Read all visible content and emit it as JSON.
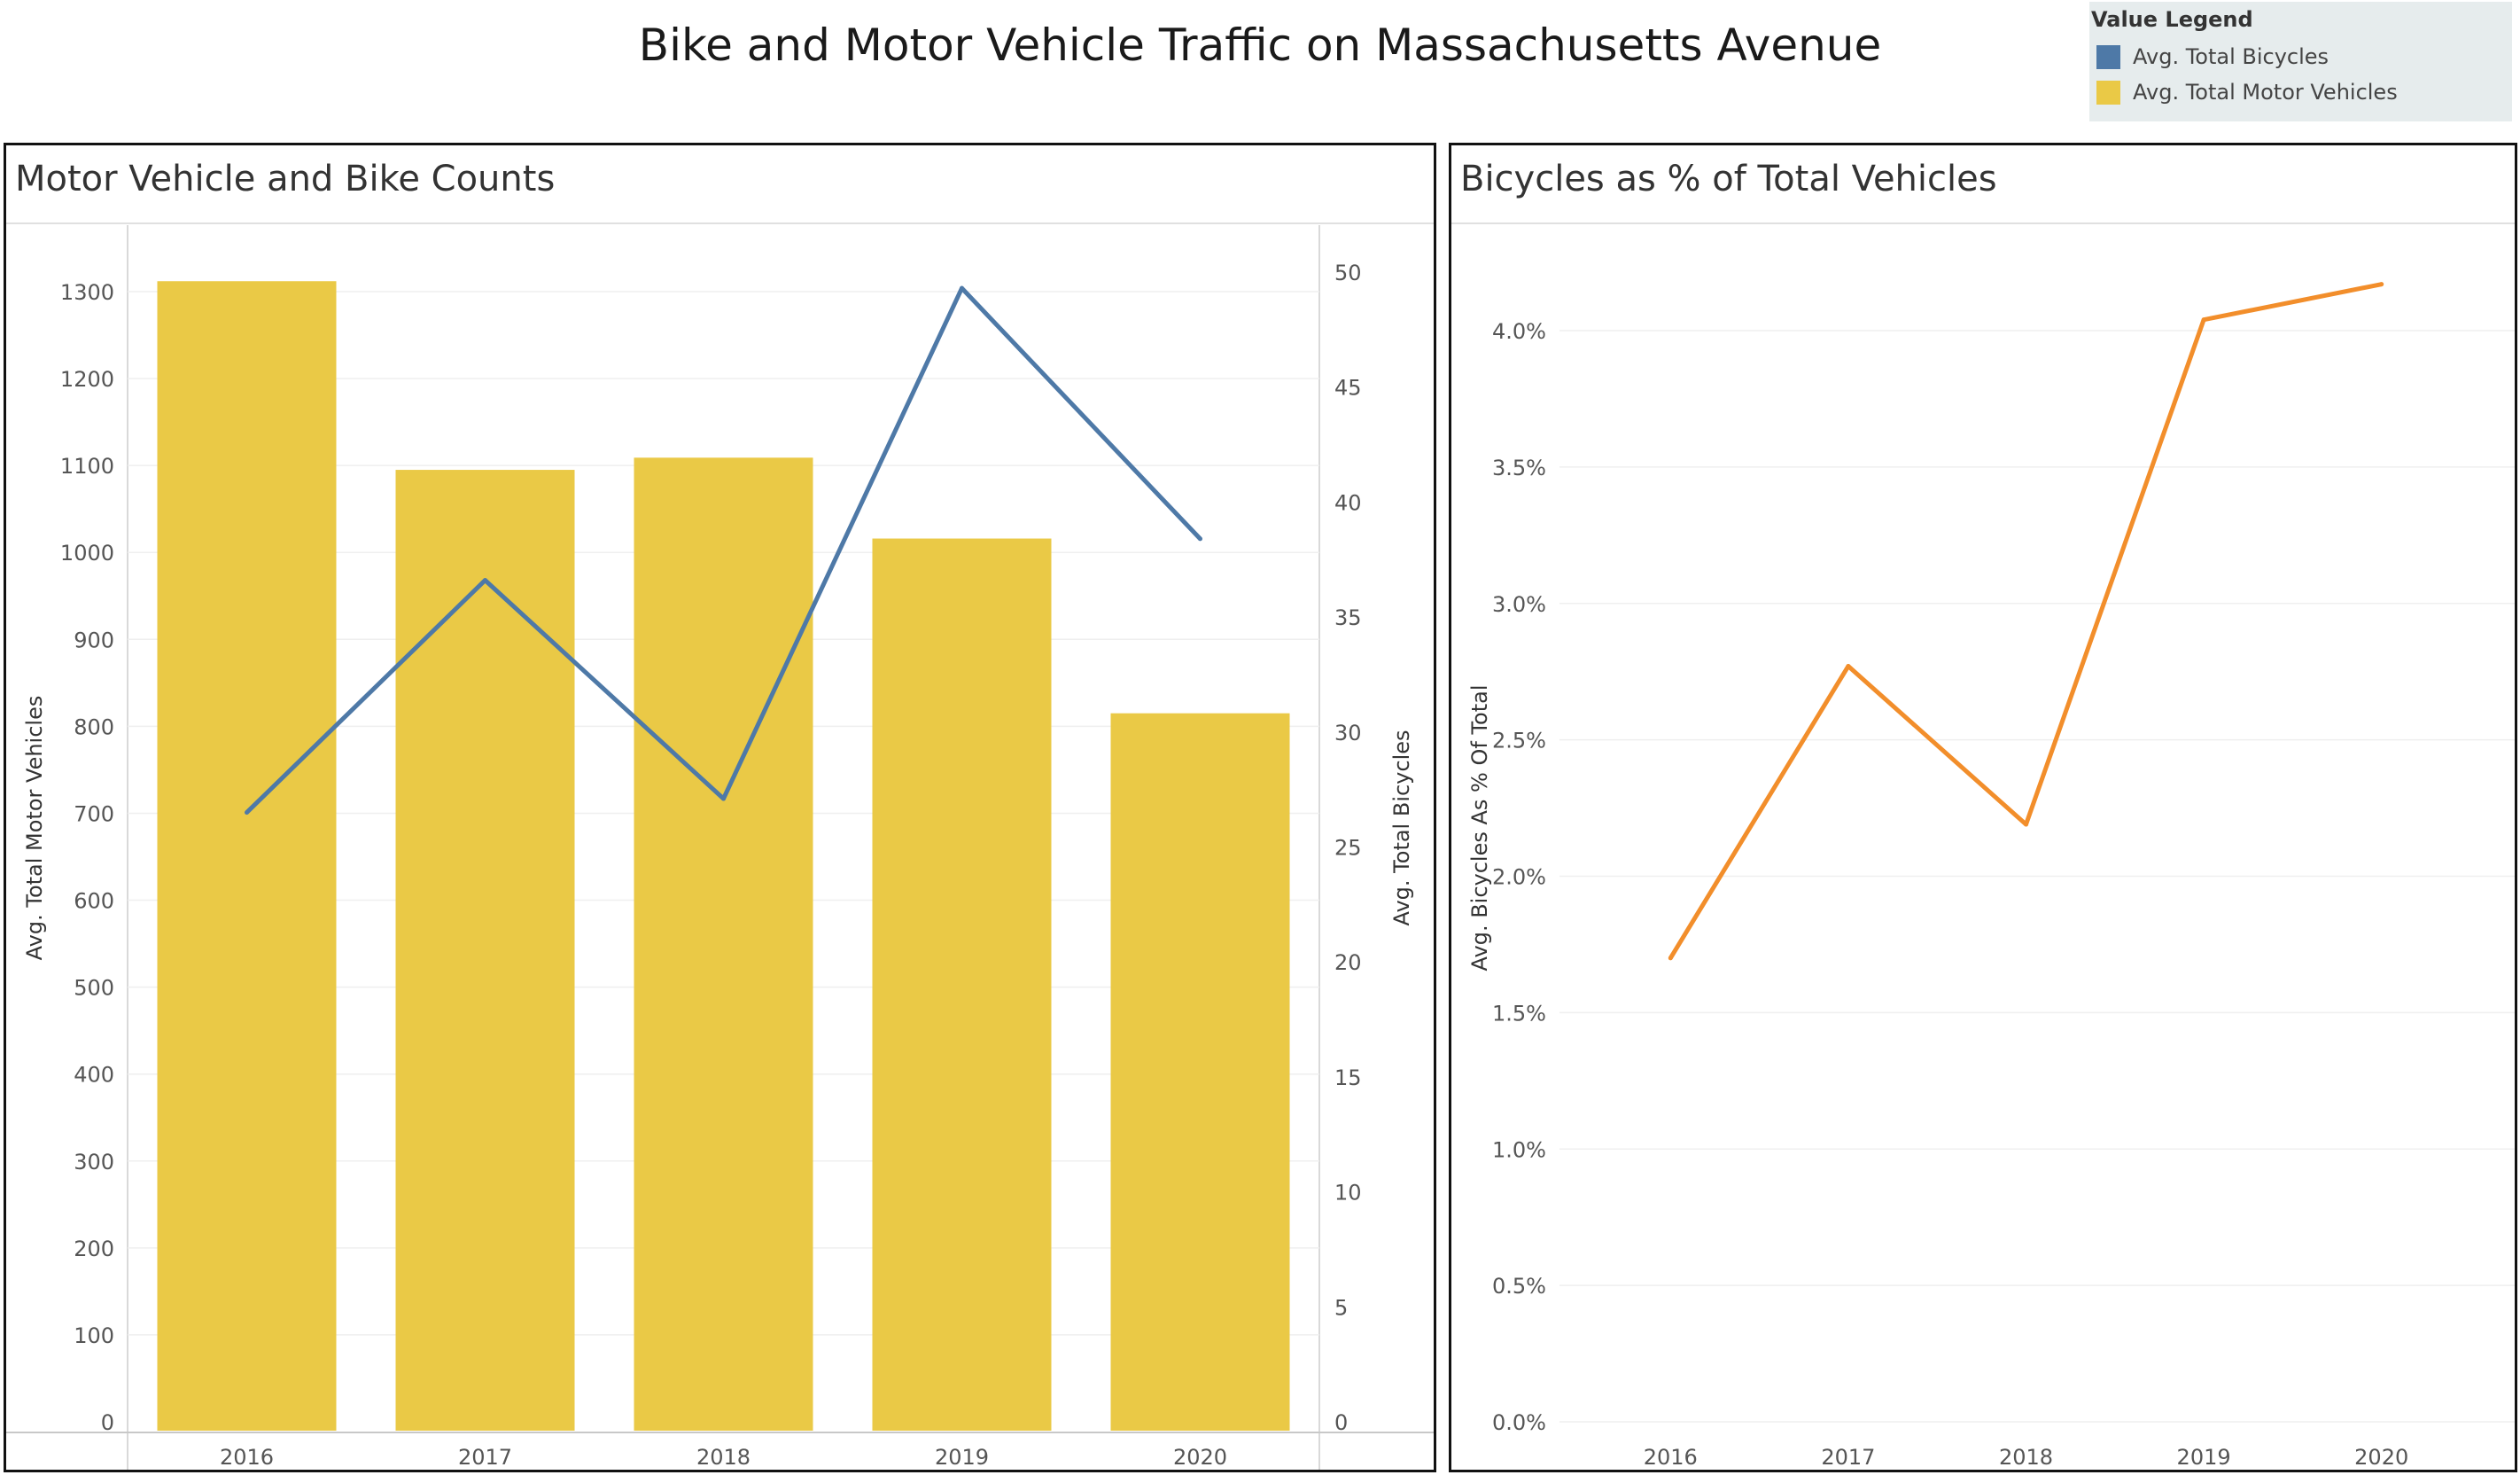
{
  "title": "Bike and Motor Vehicle Traffic on Massachusetts Avenue",
  "legend": {
    "title": "Value Legend",
    "items": [
      {
        "label": "Avg. Total Bicycles",
        "color": "#4e79a7"
      },
      {
        "label": "Avg. Total Motor Vehicles",
        "color": "#eac946"
      }
    ]
  },
  "chart_data": [
    {
      "type": "bar",
      "title": "Motor Vehicle and Bike Counts",
      "categories": [
        "2016",
        "2017",
        "2018",
        "2019",
        "2020"
      ],
      "series": [
        {
          "name": "Avg. Total Motor Vehicles",
          "type": "bar",
          "axis": "left",
          "values": [
            1312,
            1095,
            1109,
            1016,
            815
          ],
          "color": "#eac946"
        },
        {
          "name": "Avg. Total Bicycles",
          "type": "line",
          "axis": "right",
          "values": [
            26.5,
            36.6,
            27.1,
            49.3,
            38.4
          ],
          "color": "#4e79a7"
        }
      ],
      "ylabel": "Avg. Total Motor Vehicles",
      "ylim": [
        0,
        1300
      ],
      "yticks": [
        "0",
        "100",
        "200",
        "300",
        "400",
        "500",
        "600",
        "700",
        "800",
        "900",
        "1000",
        "1100",
        "1200",
        "1300"
      ],
      "y2label": "Avg. Total Bicycles",
      "y2lim": [
        0,
        50
      ],
      "y2ticks": [
        "0",
        "5",
        "10",
        "15",
        "20",
        "25",
        "30",
        "35",
        "40",
        "45",
        "50"
      ],
      "grid": true
    },
    {
      "type": "line",
      "title": "Bicycles as % of Total Vehicles",
      "categories": [
        "2016",
        "2017",
        "2018",
        "2019",
        "2020"
      ],
      "series": [
        {
          "values": [
            1.7,
            2.77,
            2.19,
            4.04,
            4.17
          ],
          "color": "#f28e2b"
        }
      ],
      "ylabel": "Avg. Bicycles As % Of Total",
      "ylim": [
        0,
        4.0
      ],
      "yticks": [
        "0.0%",
        "0.5%",
        "1.0%",
        "1.5%",
        "2.0%",
        "2.5%",
        "3.0%",
        "3.5%",
        "4.0%"
      ],
      "grid": true
    }
  ]
}
